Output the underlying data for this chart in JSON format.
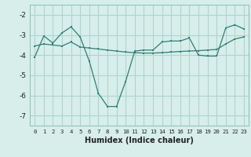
{
  "line1_x": [
    0,
    1,
    2,
    3,
    4,
    5,
    6,
    7,
    8,
    9,
    10,
    11,
    12,
    13,
    14,
    15,
    16,
    17,
    18,
    19,
    20,
    21,
    22,
    23
  ],
  "line1_y": [
    -4.1,
    -3.05,
    -3.4,
    -2.9,
    -2.6,
    -3.1,
    -4.3,
    -5.9,
    -6.55,
    -6.55,
    -5.3,
    -3.8,
    -3.75,
    -3.75,
    -3.35,
    -3.3,
    -3.3,
    -3.15,
    -4.0,
    -4.05,
    -4.05,
    -2.65,
    -2.5,
    -2.7
  ],
  "line2_x": [
    0,
    1,
    2,
    3,
    4,
    5,
    6,
    7,
    8,
    9,
    10,
    11,
    12,
    13,
    14,
    15,
    16,
    17,
    18,
    19,
    20,
    21,
    22,
    23
  ],
  "line2_y": [
    -3.55,
    -3.45,
    -3.5,
    -3.55,
    -3.35,
    -3.6,
    -3.65,
    -3.7,
    -3.75,
    -3.8,
    -3.85,
    -3.88,
    -3.9,
    -3.9,
    -3.88,
    -3.85,
    -3.82,
    -3.8,
    -3.78,
    -3.75,
    -3.72,
    -3.45,
    -3.2,
    -3.1
  ],
  "line_color": "#2e7f74",
  "bg_color": "#d7eeeb",
  "grid_color": "#afd4ce",
  "xlabel": "Humidex (Indice chaleur)",
  "xlim": [
    -0.5,
    23.5
  ],
  "ylim": [
    -7.5,
    -1.5
  ],
  "yticks": [
    -7,
    -6,
    -5,
    -4,
    -3,
    -2
  ],
  "xticks": [
    0,
    1,
    2,
    3,
    4,
    5,
    6,
    7,
    8,
    9,
    10,
    11,
    12,
    13,
    14,
    15,
    16,
    17,
    18,
    19,
    20,
    21,
    22,
    23
  ]
}
